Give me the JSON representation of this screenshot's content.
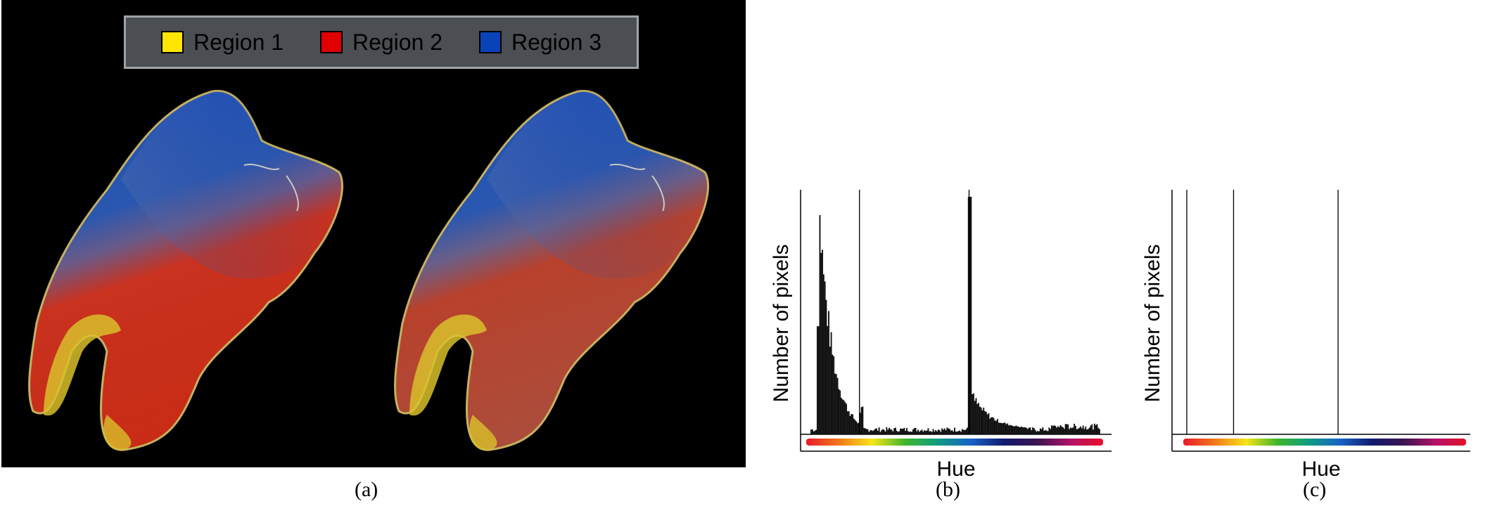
{
  "legend": {
    "entries": [
      {
        "label": "Region 1",
        "color": "#ffe600"
      },
      {
        "label": "Region 2",
        "color": "#e00000"
      },
      {
        "label": "Region 3",
        "color": "#0a43b8"
      }
    ]
  },
  "captions": {
    "a": "(a)",
    "b": "(b)",
    "c": "(c)"
  },
  "chart_data": [
    {
      "type": "bar",
      "panel": "(b)",
      "xlabel": "Hue",
      "ylabel": "Number of pixels",
      "x_range": [
        0,
        1
      ],
      "y_range": [
        0,
        1
      ],
      "hue_bar_colors": [
        "#e8182a",
        "#f07a18",
        "#f7e41a",
        "#3fb62a",
        "#0f9c82",
        "#1762c6",
        "#121a6e",
        "#3a1450",
        "#b01268",
        "#e8102a"
      ],
      "peaks": [
        {
          "hue": 0.03,
          "height": 0.91
        },
        {
          "hue": 0.55,
          "height": 1.0
        }
      ],
      "threshold_lines": [
        0.17,
        0.55
      ]
    },
    {
      "type": "bar",
      "panel": "(c)",
      "xlabel": "Hue",
      "ylabel": "Number of pixels",
      "x_range": [
        0,
        1
      ],
      "y_range": [
        0,
        1
      ],
      "hue_bar_colors": [
        "#e8182a",
        "#f07a18",
        "#f7e41a",
        "#3fb62a",
        "#0f9c82",
        "#1762c6",
        "#121a6e",
        "#3a1450",
        "#b01268",
        "#e8102a"
      ],
      "peaks": [],
      "threshold_lines": [
        0.0,
        0.17,
        0.55
      ]
    }
  ]
}
